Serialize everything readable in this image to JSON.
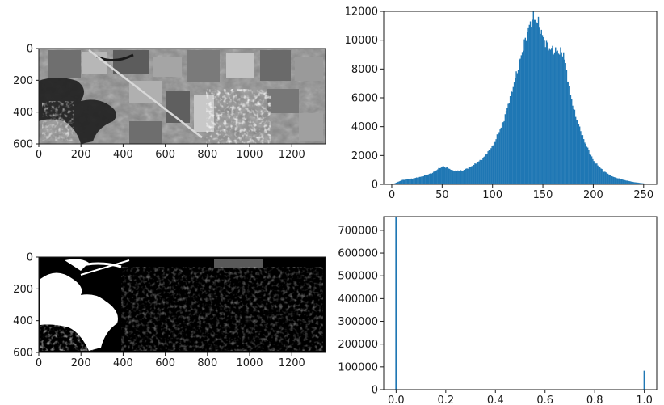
{
  "chart_data": [
    {
      "type": "image",
      "image_kind": "grayscale aerial photograph",
      "xlim": [
        0,
        1360
      ],
      "ylim": [
        600,
        0
      ],
      "xticks": [
        0,
        200,
        400,
        600,
        800,
        1000,
        1200
      ],
      "yticks": [
        0,
        200,
        400,
        600
      ]
    },
    {
      "type": "bar",
      "bar_color": "#1f77b4",
      "xlim": [
        -8,
        263
      ],
      "ylim": [
        0,
        12000
      ],
      "xticks": [
        0,
        50,
        100,
        150,
        200,
        250
      ],
      "yticks": [
        0,
        2000,
        4000,
        6000,
        8000,
        10000,
        12000
      ],
      "x": [
        0,
        10,
        20,
        30,
        40,
        45,
        50,
        55,
        60,
        70,
        80,
        90,
        100,
        110,
        120,
        130,
        135,
        140,
        145,
        150,
        155,
        160,
        165,
        170,
        175,
        180,
        190,
        200,
        210,
        220,
        230,
        240,
        250,
        255
      ],
      "values": [
        0,
        300,
        400,
        550,
        800,
        1050,
        1250,
        1150,
        950,
        950,
        1300,
        1800,
        2700,
        4300,
        6800,
        9500,
        10800,
        11600,
        11200,
        10100,
        9500,
        9300,
        9200,
        9100,
        7000,
        5200,
        3100,
        1600,
        900,
        500,
        300,
        150,
        60,
        0
      ]
    },
    {
      "type": "image",
      "image_kind": "binary thresholded mask",
      "xlim": [
        0,
        1360
      ],
      "ylim": [
        600,
        0
      ],
      "xticks": [
        0,
        200,
        400,
        600,
        800,
        1000,
        1200
      ],
      "yticks": [
        0,
        200,
        400,
        600
      ]
    },
    {
      "type": "bar",
      "bar_color": "#1f77b4",
      "xlim": [
        -0.05,
        1.05
      ],
      "ylim": [
        0,
        760000
      ],
      "xticks": [
        0.0,
        0.2,
        0.4,
        0.6,
        0.8,
        1.0
      ],
      "yticks": [
        0,
        100000,
        200000,
        300000,
        400000,
        500000,
        600000,
        700000
      ],
      "x": [
        0.0,
        1.0
      ],
      "values": [
        757000,
        83000
      ]
    }
  ]
}
